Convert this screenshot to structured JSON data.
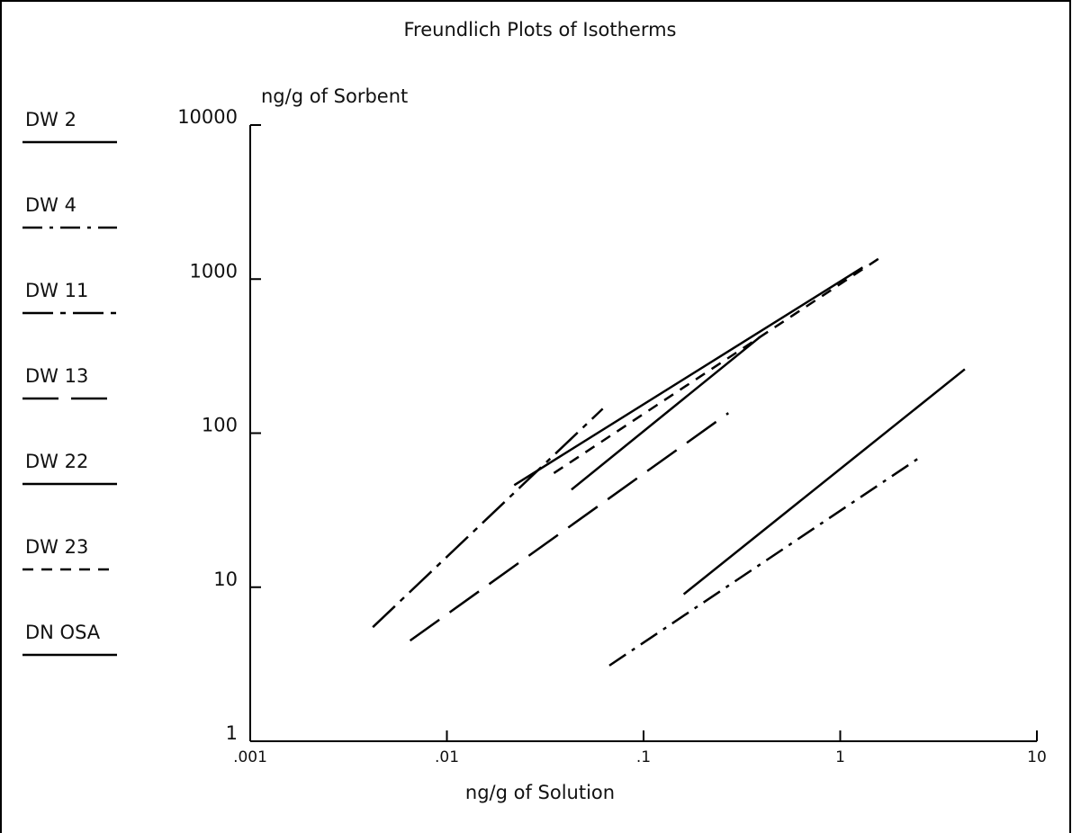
{
  "chart_data": {
    "type": "line",
    "title": "Freundlich Plots of Isotherms",
    "ylabel": "ng/g of Sorbent",
    "xlabel": "ng/g of Solution",
    "xscale": "log",
    "yscale": "log",
    "grid": false,
    "legend": "left",
    "xlim": [
      0.001,
      10
    ],
    "ylim": [
      1,
      10000
    ],
    "xticks": [
      {
        "value": 0.001,
        "label": ".001"
      },
      {
        "value": 0.01,
        "label": ".01"
      },
      {
        "value": 0.1,
        "label": ".1"
      },
      1,
      10
    ],
    "yticks": [
      1,
      10,
      100,
      1000,
      10000
    ],
    "series": [
      {
        "name": "DW 2",
        "color": "#000000",
        "dash": "solid",
        "x": [
          0.16,
          4.3
        ],
        "values": [
          9,
          260
        ]
      },
      {
        "name": "DW 4",
        "color": "#000000",
        "dash": "dashdot",
        "x": [
          0.067,
          2.6
        ],
        "values": [
          3.1,
          71
        ]
      },
      {
        "name": "DW 11",
        "color": "#000000",
        "dash": "longdashdot",
        "x": [
          0.0042,
          0.062
        ],
        "values": [
          5.5,
          144
        ]
      },
      {
        "name": "DW 13",
        "color": "#000000",
        "dash": "longdash",
        "x": [
          0.0065,
          0.27
        ],
        "values": [
          4.5,
          135
        ]
      },
      {
        "name": "DW 22",
        "color": "#000000",
        "dash": "solid",
        "x": [
          0.043,
          0.39
        ],
        "values": [
          43,
          420
        ]
      },
      {
        "name": "DW 23",
        "color": "#000000",
        "dash": "dash",
        "x": [
          0.035,
          1.6
        ],
        "values": [
          55,
          1380
        ]
      },
      {
        "name": "DN OSA",
        "color": "#000000",
        "dash": "solid",
        "x": [
          0.022,
          1.3
        ],
        "values": [
          46,
          1190
        ]
      }
    ]
  }
}
